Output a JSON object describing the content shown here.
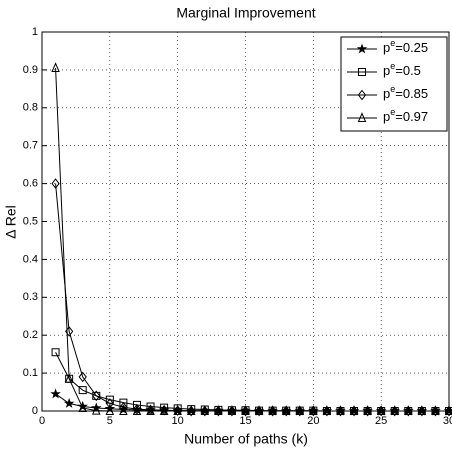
{
  "chart_data": {
    "type": "line",
    "title": "Marginal Improvement",
    "x_label": "Number of paths (k)",
    "y_label": "Δ Rel",
    "x": [
      1,
      2,
      3,
      4,
      5,
      6,
      7,
      8,
      9,
      10,
      11,
      12,
      13,
      14,
      15,
      16,
      17,
      18,
      19,
      20,
      21,
      22,
      23,
      24,
      25,
      26,
      27,
      28,
      29,
      30
    ],
    "series": [
      {
        "name": "pe=0.25",
        "color": "#000000",
        "marker": "star",
        "values": [
          0.045,
          0.02,
          0.012,
          0.008,
          0.006,
          0.004,
          0.003,
          0.002,
          0.002,
          0.001,
          0.001,
          0.001,
          0.001,
          0.001,
          0.001,
          0,
          0,
          0,
          0,
          0,
          0,
          0,
          0,
          0,
          0,
          0,
          0,
          0,
          0,
          0
        ]
      },
      {
        "name": "pe=0.5",
        "color": "#000000",
        "marker": "square",
        "values": [
          0.155,
          0.085,
          0.055,
          0.04,
          0.03,
          0.022,
          0.016,
          0.012,
          0.009,
          0.007,
          0.005,
          0.004,
          0.003,
          0.002,
          0.002,
          0.001,
          0.001,
          0.001,
          0.001,
          0.001,
          0,
          0,
          0,
          0,
          0,
          0,
          0,
          0,
          0,
          0
        ]
      },
      {
        "name": "pe=0.85",
        "color": "#000000",
        "marker": "diamond",
        "values": [
          0.6,
          0.21,
          0.09,
          0.04,
          0.02,
          0.01,
          0.005,
          0.003,
          0.002,
          0.001,
          0,
          0,
          0,
          0,
          0,
          0,
          0,
          0,
          0,
          0,
          0,
          0,
          0,
          0,
          0,
          0,
          0,
          0,
          0,
          0
        ]
      },
      {
        "name": "pe=0.97",
        "color": "#000000",
        "marker": "triangle",
        "values": [
          0.905,
          0.085,
          0.008,
          0.001,
          0,
          0,
          0,
          0,
          0,
          0,
          0,
          0,
          0,
          0,
          0,
          0,
          0,
          0,
          0,
          0,
          0,
          0,
          0,
          0,
          0,
          0,
          0,
          0,
          0,
          0
        ]
      }
    ],
    "xlim": [
      0,
      30
    ],
    "xticks": [
      0,
      5,
      10,
      15,
      20,
      25,
      30
    ],
    "ylim": [
      0,
      1
    ],
    "yticks": [
      0,
      0.1,
      0.2,
      0.3,
      0.4,
      0.5,
      0.6,
      0.7,
      0.8,
      0.9,
      1
    ],
    "grid": true,
    "legend": "upper right"
  }
}
